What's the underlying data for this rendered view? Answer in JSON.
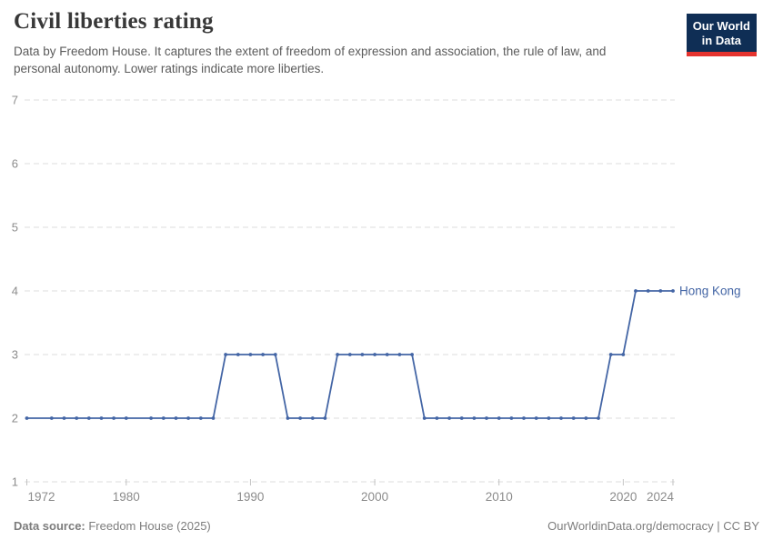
{
  "header": {
    "title": "Civil liberties rating",
    "subtitle_lines": [
      "Data by Freedom House. It captures the extent of freedom of expression and association, the rule of law, and",
      "personal autonomy. Lower ratings indicate more liberties."
    ],
    "logo": {
      "line1": "Our World",
      "line2": "in Data",
      "bg_color": "#0f2e55",
      "accent_color": "#e5332e"
    }
  },
  "chart_data": {
    "type": "line",
    "title": "Civil liberties rating",
    "xlabel": "",
    "ylabel": "",
    "xlim": [
      1972,
      2024
    ],
    "ylim": [
      1,
      7
    ],
    "x_ticks": [
      1972,
      1980,
      1990,
      2000,
      2010,
      2020,
      2024
    ],
    "y_ticks": [
      1,
      2,
      3,
      4,
      5,
      6,
      7
    ],
    "grid": "horizontal-dashed",
    "legend_position": "end-of-line",
    "grid_color": "#dcdcdc",
    "tick_label_color": "#8c8c8c",
    "series": [
      {
        "name": "Hong Kong",
        "color": "#4365a5",
        "x": [
          1972,
          1974,
          1975,
          1976,
          1977,
          1978,
          1979,
          1980,
          1982,
          1983,
          1984,
          1985,
          1986,
          1987,
          1988,
          1989,
          1990,
          1991,
          1992,
          1993,
          1994,
          1995,
          1996,
          1997,
          1998,
          1999,
          2000,
          2001,
          2002,
          2003,
          2004,
          2005,
          2006,
          2007,
          2008,
          2009,
          2010,
          2011,
          2012,
          2013,
          2014,
          2015,
          2016,
          2017,
          2018,
          2019,
          2020,
          2021,
          2022,
          2023,
          2024
        ],
        "values": [
          2,
          2,
          2,
          2,
          2,
          2,
          2,
          2,
          2,
          2,
          2,
          2,
          2,
          2,
          3,
          3,
          3,
          3,
          3,
          2,
          2,
          2,
          2,
          3,
          3,
          3,
          3,
          3,
          3,
          3,
          2,
          2,
          2,
          2,
          2,
          2,
          2,
          2,
          2,
          2,
          2,
          2,
          2,
          2,
          2,
          3,
          3,
          4,
          4,
          4,
          4
        ]
      }
    ]
  },
  "footer": {
    "source_label": "Data source:",
    "source_value": " Freedom House (2025)",
    "right_text": "OurWorldinData.org/democracy | CC BY"
  }
}
